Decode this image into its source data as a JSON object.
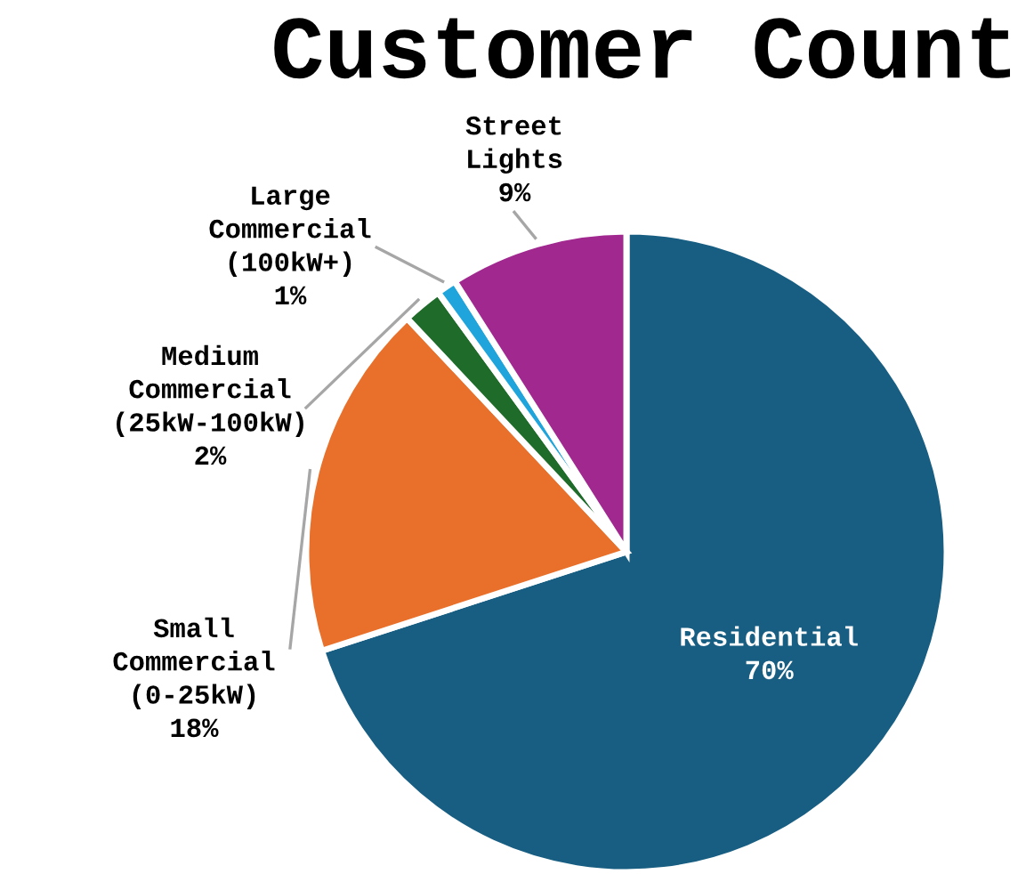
{
  "chart_data": {
    "type": "pie",
    "title": "Customer Count",
    "categories": [
      "Residential",
      "Small Commercial (0-25kW)",
      "Medium Commercial (25kW-100kW)",
      "Large Commercial (100kW+)",
      "Street Lights"
    ],
    "values": [
      70,
      18,
      2,
      1,
      9
    ],
    "value_labels": [
      "70%",
      "18%",
      "2%",
      "1%",
      "9%"
    ],
    "colors": [
      "#175e82",
      "#e8702a",
      "#1e6b2a",
      "#1fa4dc",
      "#a0288f"
    ],
    "legend": false
  }
}
